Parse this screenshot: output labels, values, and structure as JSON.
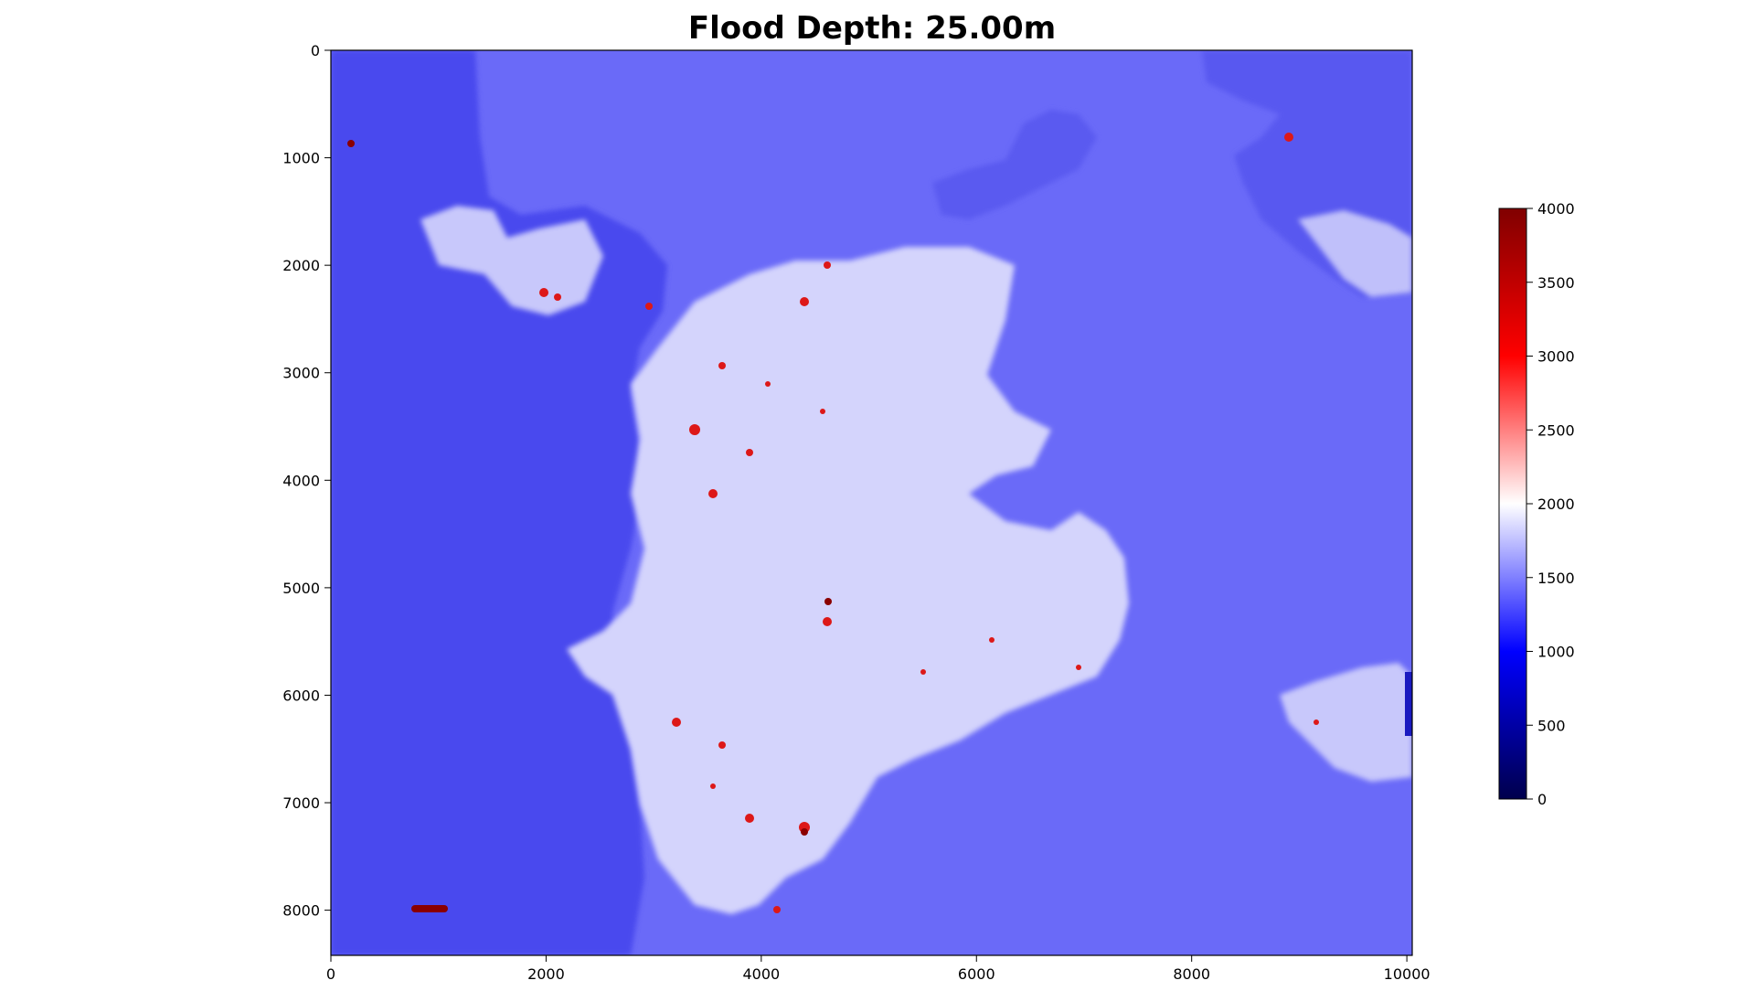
{
  "chart_data": {
    "type": "heatmap",
    "title": "Flood Depth: 25.00m",
    "xlabel": "",
    "ylabel": "",
    "xlim": [
      0,
      10050
    ],
    "ylim": [
      8420,
      0
    ],
    "x_ticks": [
      0,
      2000,
      4000,
      6000,
      8000,
      10000
    ],
    "y_ticks": [
      0,
      1000,
      2000,
      3000,
      4000,
      5000,
      6000,
      7000,
      8000
    ],
    "colorbar": {
      "colormap": "seismic",
      "min": 0,
      "max": 4000,
      "ticks": [
        0,
        500,
        1000,
        1500,
        2000,
        2500,
        3000,
        3500,
        4000
      ],
      "colors": [
        "#00004c",
        "#0000ff",
        "#ffffff",
        "#ff0000",
        "#800000"
      ]
    },
    "grid": false,
    "background_value": 1400,
    "colors": {
      "water": "#6a6af8",
      "upland": "#4a4af0",
      "lowland": "#d8d8ff",
      "high": "#e02020"
    }
  }
}
